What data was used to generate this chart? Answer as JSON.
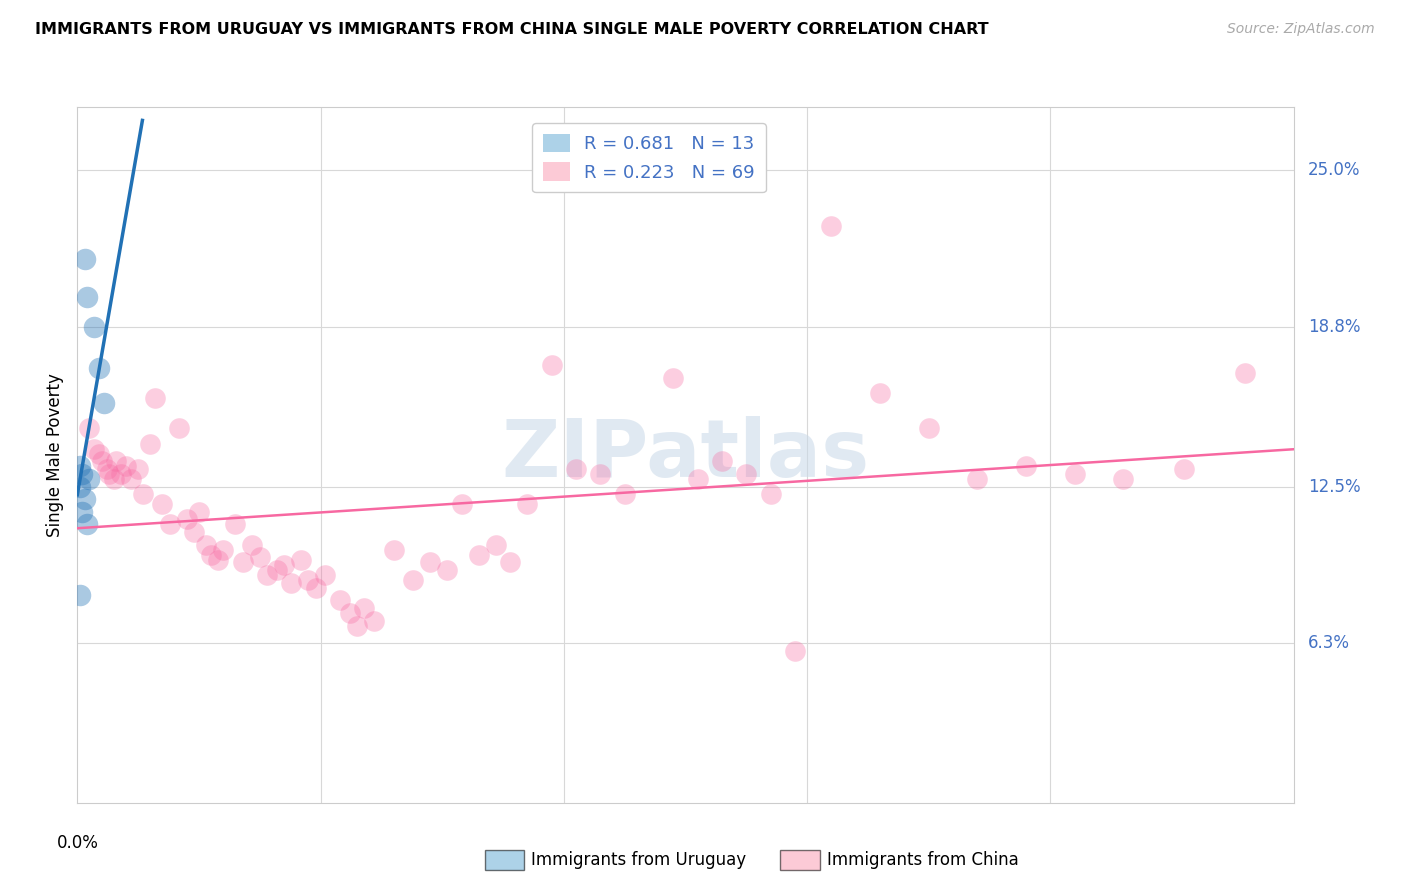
{
  "title": "IMMIGRANTS FROM URUGUAY VS IMMIGRANTS FROM CHINA SINGLE MALE POVERTY CORRELATION CHART",
  "source": "Source: ZipAtlas.com",
  "ylabel": "Single Male Poverty",
  "y_tick_labels": [
    "6.3%",
    "12.5%",
    "18.8%",
    "25.0%"
  ],
  "y_tick_values": [
    0.063,
    0.125,
    0.188,
    0.25
  ],
  "xlim": [
    0.0,
    0.5
  ],
  "ylim": [
    0.0,
    0.275
  ],
  "legend_color_1": "#6baed6",
  "legend_color_2": "#fa9fb5",
  "watermark": "ZIPatlas",
  "uruguay_points": [
    [
      0.003,
      0.215
    ],
    [
      0.004,
      0.2
    ],
    [
      0.007,
      0.188
    ],
    [
      0.009,
      0.172
    ],
    [
      0.011,
      0.158
    ],
    [
      0.001,
      0.133
    ],
    [
      0.002,
      0.13
    ],
    [
      0.005,
      0.128
    ],
    [
      0.001,
      0.125
    ],
    [
      0.003,
      0.12
    ],
    [
      0.002,
      0.115
    ],
    [
      0.004,
      0.11
    ],
    [
      0.001,
      0.082
    ]
  ],
  "china_points": [
    [
      0.005,
      0.148
    ],
    [
      0.007,
      0.14
    ],
    [
      0.009,
      0.138
    ],
    [
      0.01,
      0.135
    ],
    [
      0.012,
      0.132
    ],
    [
      0.013,
      0.13
    ],
    [
      0.015,
      0.128
    ],
    [
      0.016,
      0.135
    ],
    [
      0.018,
      0.13
    ],
    [
      0.02,
      0.133
    ],
    [
      0.022,
      0.128
    ],
    [
      0.025,
      0.132
    ],
    [
      0.027,
      0.122
    ],
    [
      0.03,
      0.142
    ],
    [
      0.032,
      0.16
    ],
    [
      0.035,
      0.118
    ],
    [
      0.038,
      0.11
    ],
    [
      0.042,
      0.148
    ],
    [
      0.045,
      0.112
    ],
    [
      0.048,
      0.107
    ],
    [
      0.05,
      0.115
    ],
    [
      0.053,
      0.102
    ],
    [
      0.055,
      0.098
    ],
    [
      0.058,
      0.096
    ],
    [
      0.06,
      0.1
    ],
    [
      0.065,
      0.11
    ],
    [
      0.068,
      0.095
    ],
    [
      0.072,
      0.102
    ],
    [
      0.075,
      0.097
    ],
    [
      0.078,
      0.09
    ],
    [
      0.082,
      0.092
    ],
    [
      0.085,
      0.094
    ],
    [
      0.088,
      0.087
    ],
    [
      0.092,
      0.096
    ],
    [
      0.095,
      0.088
    ],
    [
      0.098,
      0.085
    ],
    [
      0.102,
      0.09
    ],
    [
      0.108,
      0.08
    ],
    [
      0.112,
      0.075
    ],
    [
      0.115,
      0.07
    ],
    [
      0.118,
      0.077
    ],
    [
      0.122,
      0.072
    ],
    [
      0.13,
      0.1
    ],
    [
      0.138,
      0.088
    ],
    [
      0.145,
      0.095
    ],
    [
      0.152,
      0.092
    ],
    [
      0.158,
      0.118
    ],
    [
      0.165,
      0.098
    ],
    [
      0.172,
      0.102
    ],
    [
      0.178,
      0.095
    ],
    [
      0.185,
      0.118
    ],
    [
      0.195,
      0.173
    ],
    [
      0.205,
      0.132
    ],
    [
      0.215,
      0.13
    ],
    [
      0.225,
      0.122
    ],
    [
      0.245,
      0.168
    ],
    [
      0.255,
      0.128
    ],
    [
      0.265,
      0.135
    ],
    [
      0.275,
      0.13
    ],
    [
      0.285,
      0.122
    ],
    [
      0.295,
      0.06
    ],
    [
      0.31,
      0.228
    ],
    [
      0.33,
      0.162
    ],
    [
      0.35,
      0.148
    ],
    [
      0.37,
      0.128
    ],
    [
      0.39,
      0.133
    ],
    [
      0.41,
      0.13
    ],
    [
      0.43,
      0.128
    ],
    [
      0.455,
      0.132
    ],
    [
      0.48,
      0.17
    ]
  ],
  "uruguay_line_color": "#2171b5",
  "china_line_color": "#f768a1",
  "bg_color": "#ffffff",
  "grid_color": "#d8d8d8"
}
